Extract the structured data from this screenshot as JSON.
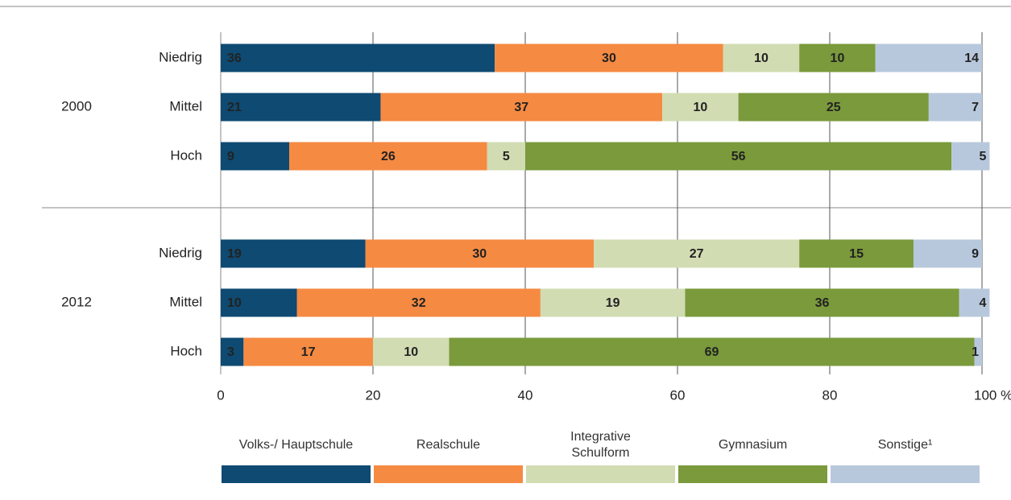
{
  "chart_data": {
    "type": "stacked-bar-horizontal",
    "groups": [
      "2000",
      "2012"
    ],
    "categories": [
      "Niedrig",
      "Mittel",
      "Hoch",
      "Niedrig",
      "Mittel",
      "Hoch"
    ],
    "series": [
      {
        "name": "Volks-/ Hauptschule",
        "color": "#0e4a72",
        "values": [
          36,
          21,
          9,
          19,
          10,
          3
        ]
      },
      {
        "name": "Realschule",
        "color": "#f58a42",
        "values": [
          30,
          37,
          26,
          30,
          32,
          17
        ]
      },
      {
        "name": "Integrative Schulform",
        "color": "#d1dcb2",
        "values": [
          10,
          10,
          5,
          27,
          19,
          10
        ]
      },
      {
        "name": "Gymnasium",
        "color": "#7a9a3c",
        "values": [
          10,
          25,
          56,
          15,
          36,
          69
        ]
      },
      {
        "name": "Sonstige¹",
        "color": "#b8c8dc",
        "values": [
          14,
          7,
          5,
          9,
          4,
          1
        ]
      }
    ],
    "xlim": [
      0,
      100
    ],
    "xticks": [
      0,
      20,
      40,
      60,
      80,
      {
        "value": 100,
        "label": "100 %"
      }
    ],
    "grid": true
  }
}
